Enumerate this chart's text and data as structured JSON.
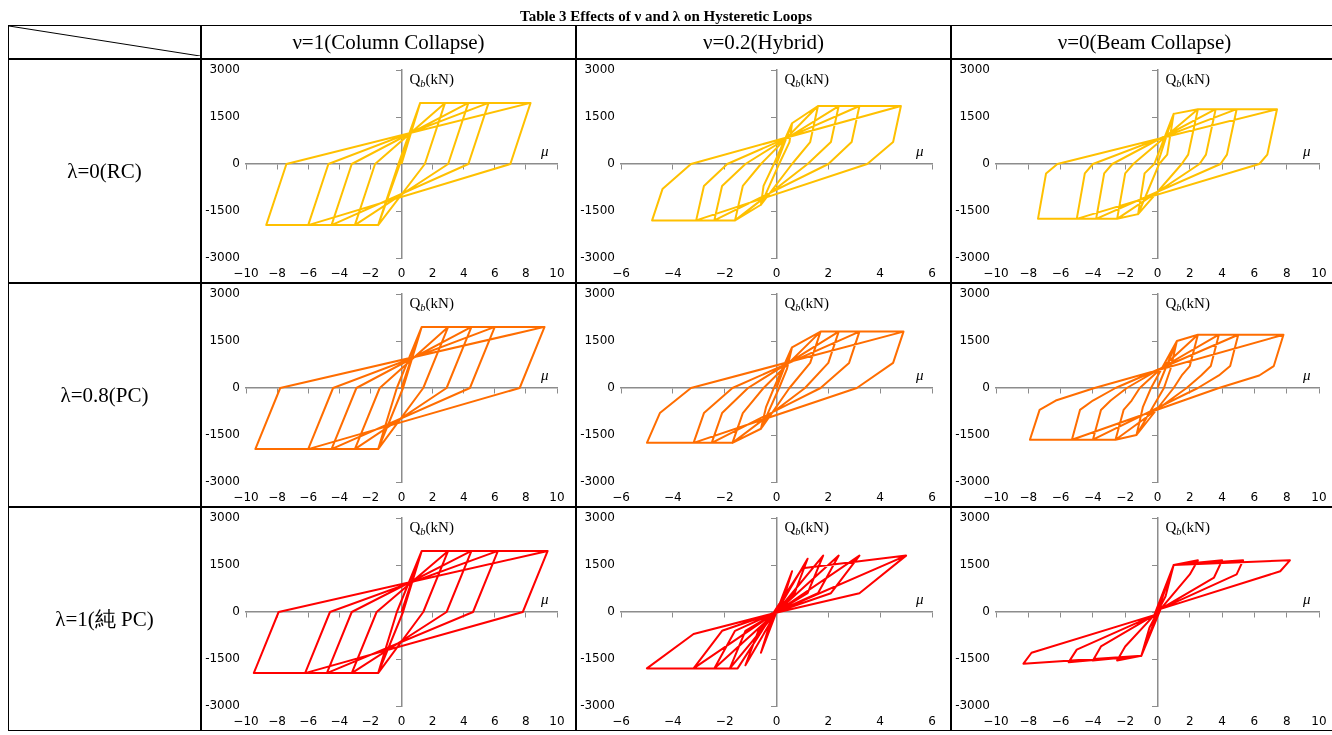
{
  "chart_data": [
    {
      "type": "other",
      "title": "Table 3 Effects of ν and λ on Hysteretic Loops",
      "annotations": [
        "ν=1(Column Collapse)",
        "ν=0.2(Hybrid)",
        "ν=0(Beam Collapse)",
        "λ=0(RC)",
        "λ=0.8(PC)",
        "λ=1(純 PC)"
      ]
    },
    {
      "type": "line",
      "xlabel": "μ",
      "ylabel": "Q$_{b}$(kN)",
      "color": "#ffc000",
      "marker": "none",
      "xlim": [
        -10,
        10
      ],
      "xticks": [
        {
          "value": -10,
          "label": "−10"
        },
        {
          "value": -8,
          "label": "−8"
        },
        {
          "value": -6,
          "label": "−6"
        },
        {
          "value": -4,
          "label": "−4"
        },
        {
          "value": -2,
          "label": "−2"
        },
        0,
        2,
        4,
        6,
        8,
        10
      ],
      "ylim": [
        -3000,
        3000
      ],
      "yticks": [
        -3000,
        -1500,
        0,
        1500,
        3000
      ],
      "x": [
        0,
        1.2,
        -0.1,
        -1.5,
        -0.2,
        1.2,
        2.8,
        1.5,
        -1.5,
        -3.0,
        -1.7,
        2.8,
        4.3,
        3.0,
        -3.0,
        -4.5,
        -3.2,
        4.3,
        5.6,
        4.3,
        -4.5,
        -6.0,
        -4.7,
        5.6,
        8.3,
        7.0,
        -6.0,
        -8.7,
        -7.4,
        8.3
      ],
      "values": [
        0,
        1950,
        0,
        -1950,
        0,
        1950,
        1950,
        0,
        -1950,
        -1950,
        0,
        1950,
        1950,
        0,
        -1950,
        -1950,
        0,
        1950,
        1950,
        0,
        -1950,
        -1950,
        0,
        1950,
        1950,
        0,
        -1950,
        -1950,
        0,
        1950
      ]
    },
    {
      "type": "line",
      "xlabel": "μ",
      "ylabel": "Q$_{b}$(kN)",
      "color": "#ffc000",
      "marker": "none",
      "xlim": [
        -6,
        6
      ],
      "xticks": [
        {
          "value": -6,
          "label": "−6"
        },
        {
          "value": -4,
          "label": "−4"
        },
        {
          "value": -2,
          "label": "−2"
        },
        0,
        2,
        4,
        6
      ],
      "ylim": [
        -3000,
        3000
      ],
      "yticks": [
        -3000,
        -1500,
        0,
        1500,
        3000
      ],
      "x": [
        0,
        0.6,
        0.5,
        0.1,
        -0.6,
        -0.5,
        -0.1,
        0.6,
        1.6,
        1.3,
        0.6,
        -0.6,
        -1.6,
        -1.3,
        -0.6,
        1.6,
        2.4,
        2.1,
        1.2,
        -1.6,
        -2.4,
        -2.1,
        -1.2,
        2.4,
        3.2,
        2.9,
        2.0,
        -2.4,
        -3.1,
        -2.8,
        -1.9,
        3.2,
        4.8,
        4.5,
        3.5,
        -3.1,
        -4.8,
        -4.4,
        -3.3,
        4.8
      ],
      "values": [
        0,
        1300,
        700,
        0,
        -1300,
        -700,
        0,
        1300,
        1850,
        700,
        0,
        -1300,
        -1800,
        -700,
        0,
        1850,
        1850,
        700,
        0,
        -1800,
        -1800,
        -700,
        0,
        1850,
        1850,
        700,
        0,
        -1800,
        -1800,
        -700,
        0,
        1850,
        1850,
        700,
        0,
        -1800,
        -1800,
        -800,
        0,
        1850
      ]
    },
    {
      "type": "line",
      "xlabel": "μ",
      "ylabel": "Q$_{b}$(kN)",
      "color": "#ffc000",
      "marker": "none",
      "xlim": [
        -10,
        10
      ],
      "xticks": [
        {
          "value": -10,
          "label": "−10"
        },
        {
          "value": -8,
          "label": "−8"
        },
        {
          "value": -6,
          "label": "−6"
        },
        {
          "value": -4,
          "label": "−4"
        },
        {
          "value": -2,
          "label": "−2"
        },
        0,
        2,
        4,
        6,
        8,
        10
      ],
      "ylim": [
        -3000,
        3000
      ],
      "yticks": [
        -3000,
        -1500,
        0,
        1500,
        3000
      ],
      "x": [
        0,
        1.0,
        0.6,
        0.1,
        -1.2,
        -0.8,
        -0.2,
        1.0,
        2.5,
        1.9,
        1.5,
        -1.2,
        -2.5,
        -2.0,
        -1.5,
        2.5,
        3.6,
        3.0,
        2.6,
        -2.5,
        -3.8,
        -3.3,
        -2.8,
        3.6,
        4.9,
        4.3,
        3.9,
        -3.8,
        -5.0,
        -4.5,
        -4.0,
        4.9,
        7.4,
        6.8,
        6.3,
        -5.0,
        -7.4,
        -6.9,
        -6.2,
        7.4
      ],
      "values": [
        0,
        1600,
        300,
        0,
        -1600,
        -300,
        0,
        1600,
        1750,
        300,
        0,
        -1600,
        -1750,
        -300,
        0,
        1750,
        1750,
        300,
        0,
        -1750,
        -1750,
        -300,
        0,
        1750,
        1750,
        300,
        0,
        -1750,
        -1750,
        -300,
        0,
        1750,
        1750,
        300,
        0,
        -1750,
        -1750,
        -300,
        0,
        1750
      ]
    },
    {
      "type": "line",
      "xlabel": "μ",
      "ylabel": "Q$_{b}$(kN)",
      "color": "#ff6d00",
      "marker": "none",
      "xlim": [
        -10,
        10
      ],
      "xticks": [
        {
          "value": -10,
          "label": "−10"
        },
        {
          "value": -8,
          "label": "−8"
        },
        {
          "value": -6,
          "label": "−6"
        },
        {
          "value": -4,
          "label": "−4"
        },
        {
          "value": -2,
          "label": "−2"
        },
        0,
        2,
        4,
        6,
        8,
        10
      ],
      "ylim": [
        -3000,
        3000
      ],
      "yticks": [
        -3000,
        -1500,
        0,
        1500,
        3000
      ],
      "x": [
        0,
        1.3,
        -0.3,
        -1.5,
        0.1,
        1.3,
        3.0,
        1.4,
        -1.5,
        -3.0,
        -1.4,
        3.0,
        4.5,
        2.9,
        -3.0,
        -4.5,
        -2.9,
        4.5,
        6.0,
        4.4,
        -4.5,
        -6.0,
        -4.4,
        6.0,
        9.2,
        7.6,
        -6.0,
        -9.4,
        -7.8,
        9.2
      ],
      "values": [
        0,
        1950,
        0,
        -1950,
        0,
        1950,
        1950,
        0,
        -1950,
        -1950,
        0,
        1950,
        1950,
        0,
        -1950,
        -1950,
        0,
        1950,
        1950,
        0,
        -1950,
        -1950,
        0,
        1950,
        1950,
        0,
        -1950,
        -1950,
        0,
        1950
      ]
    },
    {
      "type": "line",
      "xlabel": "μ",
      "ylabel": "Q$_{b}$(kN)",
      "color": "#ff6d00",
      "marker": "none",
      "xlim": [
        -6,
        6
      ],
      "xticks": [
        {
          "value": -6,
          "label": "−6"
        },
        {
          "value": -4,
          "label": "−4"
        },
        {
          "value": -2,
          "label": "−2"
        },
        0,
        2,
        4,
        6
      ],
      "ylim": [
        -3000,
        3000
      ],
      "yticks": [
        -3000,
        -1500,
        0,
        1500,
        3000
      ],
      "x": [
        0,
        0.6,
        0.4,
        0.1,
        -0.6,
        -0.4,
        -0.1,
        0.6,
        1.7,
        1.3,
        0.5,
        -0.6,
        -1.7,
        -1.3,
        -0.5,
        1.7,
        2.4,
        2.0,
        1.1,
        -1.7,
        -2.5,
        -2.1,
        -1.1,
        2.4,
        3.2,
        2.8,
        1.7,
        -2.5,
        -3.2,
        -2.8,
        -1.7,
        3.2,
        4.9,
        4.5,
        3.1,
        -3.2,
        -5.0,
        -4.5,
        -3.3,
        4.9
      ],
      "values": [
        0,
        1300,
        600,
        0,
        -1300,
        -600,
        0,
        1300,
        1800,
        800,
        0,
        -1300,
        -1750,
        -800,
        0,
        1800,
        1800,
        800,
        0,
        -1750,
        -1750,
        -800,
        0,
        1800,
        1800,
        800,
        0,
        -1750,
        -1750,
        -800,
        0,
        1800,
        1800,
        800,
        0,
        -1750,
        -1750,
        -800,
        0,
        1800
      ]
    },
    {
      "type": "line",
      "xlabel": "μ",
      "ylabel": "Q$_{b}$(kN)",
      "color": "#ff6d00",
      "marker": "none",
      "xlim": [
        -10,
        10
      ],
      "xticks": [
        {
          "value": -10,
          "label": "−10"
        },
        {
          "value": -8,
          "label": "−8"
        },
        {
          "value": -6,
          "label": "−6"
        },
        {
          "value": -4,
          "label": "−4"
        },
        {
          "value": -2,
          "label": "−2"
        },
        0,
        2,
        4,
        6,
        8,
        10
      ],
      "ylim": [
        -3000,
        3000
      ],
      "yticks": [
        -3000,
        -1500,
        0,
        1500,
        3000
      ],
      "x": [
        0,
        1.2,
        0.8,
        0.4,
        -1.3,
        -0.9,
        -0.4,
        1.2,
        2.5,
        2.0,
        1.5,
        1.0,
        -1.3,
        -2.6,
        -2.1,
        -1.6,
        -1.1,
        2.5,
        3.8,
        3.3,
        2.7,
        1.8,
        -2.6,
        -4.0,
        -3.5,
        -2.9,
        -1.9,
        3.8,
        5.0,
        4.5,
        3.8,
        2.5,
        -4.0,
        -5.3,
        -4.8,
        -4.0,
        -2.6,
        5.0,
        7.8,
        7.2,
        6.3,
        3.8,
        -5.3,
        -7.9,
        -7.3,
        -6.3,
        -3.9,
        7.8
      ],
      "values": [
        0,
        1500,
        600,
        0,
        -1500,
        -600,
        0,
        1500,
        1700,
        700,
        400,
        0,
        -1500,
        -1650,
        -700,
        -400,
        0,
        1700,
        1700,
        700,
        400,
        0,
        -1650,
        -1650,
        -700,
        -400,
        0,
        1700,
        1700,
        700,
        400,
        0,
        -1650,
        -1650,
        -700,
        -400,
        0,
        1700,
        1700,
        700,
        400,
        0,
        -1650,
        -1650,
        -700,
        -400,
        0,
        1700
      ]
    },
    {
      "type": "line",
      "xlabel": "μ",
      "ylabel": "Q$_{b}$(kN)",
      "color": "#ff0000",
      "marker": "none",
      "xlim": [
        -10,
        10
      ],
      "xticks": [
        {
          "value": -10,
          "label": "−10"
        },
        {
          "value": -8,
          "label": "−8"
        },
        {
          "value": -6,
          "label": "−6"
        },
        {
          "value": -4,
          "label": "−4"
        },
        {
          "value": -2,
          "label": "−2"
        },
        0,
        2,
        4,
        6,
        8,
        10
      ],
      "ylim": [
        -3000,
        3000
      ],
      "yticks": [
        -3000,
        -1500,
        0,
        1500,
        3000
      ],
      "x": [
        0,
        1.3,
        -0.3,
        -1.5,
        0.1,
        1.3,
        3.0,
        1.4,
        -1.5,
        -3.2,
        -1.6,
        3.0,
        4.5,
        2.9,
        -3.2,
        -4.8,
        -3.2,
        4.5,
        6.2,
        4.6,
        -4.8,
        -6.2,
        -4.6,
        6.2,
        9.4,
        7.8,
        -6.2,
        -9.5,
        -7.9,
        9.4
      ],
      "values": [
        0,
        1950,
        0,
        -1950,
        0,
        1950,
        1950,
        0,
        -1950,
        -1950,
        0,
        1950,
        1950,
        0,
        -1950,
        -1950,
        0,
        1950,
        1950,
        0,
        -1950,
        -1950,
        0,
        1950,
        1950,
        0,
        -1950,
        -1950,
        0,
        1950
      ]
    },
    {
      "type": "line",
      "xlabel": "μ",
      "ylabel": "Q$_{b}$(kN)",
      "color": "#ff0000",
      "marker": "none",
      "xlim": [
        -6,
        6
      ],
      "xticks": [
        {
          "value": -6,
          "label": "−6"
        },
        {
          "value": -4,
          "label": "−4"
        },
        {
          "value": -2,
          "label": "−2"
        },
        0,
        2,
        4,
        6
      ],
      "ylim": [
        -3000,
        3000
      ],
      "yticks": [
        -3000,
        -1500,
        0,
        1500,
        3000
      ],
      "x": [
        0,
        0.6,
        0.3,
        0,
        -0.6,
        -0.3,
        0,
        1.2,
        0.7,
        0,
        -1.2,
        -0.7,
        0,
        1.8,
        1.2,
        0,
        -1.8,
        -1.2,
        0,
        2.4,
        1.6,
        0,
        -2.4,
        -1.6,
        0,
        3.2,
        2.1,
        0,
        -3.2,
        -2.1,
        0,
        5.0,
        3.2,
        0.1,
        -3.2,
        -5.0,
        -1.5,
        1.0,
        5.0
      ],
      "values": [
        0,
        1300,
        500,
        0,
        -1300,
        -500,
        0,
        1700,
        600,
        0,
        -1700,
        -600,
        0,
        1800,
        600,
        0,
        -1800,
        -600,
        0,
        1800,
        600,
        0,
        -1800,
        -600,
        0,
        1800,
        600,
        0,
        -1800,
        -600,
        0,
        1800,
        600,
        0,
        -700,
        -1800,
        -1800,
        1400,
        1800
      ]
    },
    {
      "type": "line",
      "xlabel": "μ",
      "ylabel": "Q$_{b}$(kN)",
      "color": "#ff0000",
      "marker": "none",
      "xlim": [
        -10,
        10
      ],
      "xticks": [
        {
          "value": -10,
          "label": "−10"
        },
        {
          "value": -8,
          "label": "−8"
        },
        {
          "value": -6,
          "label": "−6"
        },
        {
          "value": -4,
          "label": "−4"
        },
        {
          "value": -2,
          "label": "−2"
        },
        0,
        2,
        4,
        6,
        8,
        10
      ],
      "ylim": [
        -3000,
        3000
      ],
      "yticks": [
        -3000,
        -1500,
        0,
        1500,
        3000
      ],
      "x": [
        0,
        1.0,
        0.5,
        0.1,
        -1.0,
        -0.5,
        -0.1,
        1.0,
        2.5,
        2.0,
        0.2,
        -1.0,
        -2.5,
        -2.0,
        -0.2,
        1.0,
        4.0,
        3.5,
        0.2,
        -1.0,
        -4.0,
        -3.5,
        -0.2,
        1.0,
        5.3,
        4.9,
        0.2,
        -1.0,
        -5.5,
        -5.0,
        -0.2,
        1.0,
        8.2,
        7.6,
        0.2,
        -1.0,
        -8.3,
        -7.8,
        -0.2
      ],
      "values": [
        0,
        1500,
        500,
        100,
        -1400,
        -500,
        -100,
        1500,
        1650,
        1200,
        100,
        -1400,
        -1550,
        -1100,
        -100,
        1500,
        1650,
        1100,
        100,
        -1400,
        -1550,
        -1100,
        -100,
        1500,
        1650,
        1200,
        100,
        -1400,
        -1600,
        -1200,
        -100,
        1500,
        1650,
        1300,
        100,
        -1400,
        -1650,
        -1300,
        -100
      ]
    }
  ]
}
